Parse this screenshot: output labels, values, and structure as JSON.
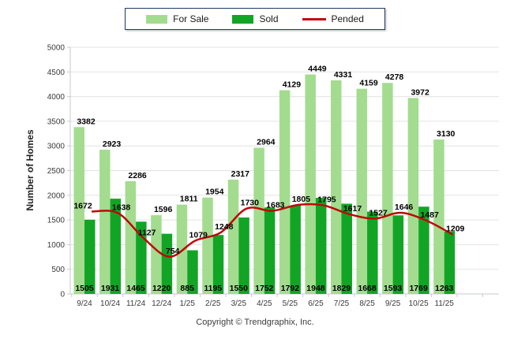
{
  "legend": {
    "items": [
      {
        "label": "For Sale",
        "color": "#A3DC8F",
        "shape": "swatch"
      },
      {
        "label": "Sold",
        "color": "#12A525",
        "shape": "swatch"
      },
      {
        "label": "Pended",
        "color": "#C00808",
        "shape": "line"
      }
    ],
    "border_color": "#1F3864"
  },
  "chart_data": {
    "type": "bar",
    "categories": [
      "9/24",
      "10/24",
      "11/24",
      "12/24",
      "1/25",
      "2/25",
      "3/25",
      "4/25",
      "5/25",
      "6/25",
      "7/25",
      "8/25",
      "9/25",
      "10/25",
      "11/25"
    ],
    "series": [
      {
        "name": "For Sale",
        "type": "bar",
        "color": "#A3DC8F",
        "values": [
          3382,
          2923,
          2286,
          1596,
          1811,
          1954,
          2317,
          2964,
          4129,
          4449,
          4331,
          4159,
          4278,
          3972,
          3130
        ]
      },
      {
        "name": "Sold",
        "type": "bar",
        "color": "#12A525",
        "values": [
          1505,
          1931,
          1465,
          1220,
          885,
          1195,
          1550,
          1752,
          1792,
          1948,
          1829,
          1668,
          1593,
          1769,
          1263
        ]
      },
      {
        "name": "Pended",
        "type": "line",
        "color": "#C00808",
        "values": [
          1672,
          1638,
          1127,
          754,
          1079,
          1248,
          1730,
          1683,
          1805,
          1795,
          1617,
          1527,
          1646,
          1487,
          1209
        ]
      }
    ],
    "title": "",
    "xlabel": "",
    "ylabel": "Number of Homes",
    "ylim": [
      0,
      5000
    ],
    "ytick_step": 500,
    "grid": true,
    "legend_position": "top"
  },
  "footer": {
    "copyright": "Copyright © Trendgraphix, Inc."
  },
  "colors": {
    "grid": "#E3E3E3",
    "axis": "#C6CBD1",
    "value_label": "#000000",
    "tick_text": "#3A3A3A"
  }
}
